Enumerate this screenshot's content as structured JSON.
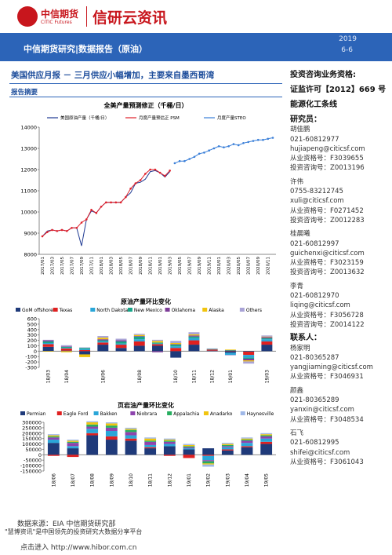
{
  "header": {
    "logo": "中信期货",
    "logo_en": "CITIC Futures",
    "brand": "信研云资讯",
    "section": "中信期货研究|数据报告（原油）",
    "year": "2019",
    "date": "6-6"
  },
  "report": {
    "title": "美国供应月报 － 三月供应小幅增加，主要来自墨西哥湾",
    "tag": "报告摘要"
  },
  "chart_data": [
    {
      "type": "line",
      "title": "全美产量预测修正（千桶/日）",
      "categories": [
        "2017/01",
        null,
        "2017/03",
        null,
        "2017/05",
        null,
        "2017/07",
        null,
        "2017/09",
        null,
        "2017/11",
        null,
        "2018/01",
        null,
        "2018/03",
        null,
        "2018/05",
        null,
        "2018/07",
        null,
        "2018/09",
        null,
        "2018/11",
        null,
        "2019/01",
        null,
        "2019/03",
        null,
        "2019/05",
        null,
        "2019/07",
        null,
        "2019/09",
        null,
        "2019/11",
        null,
        "2020/01",
        null,
        "2020/03",
        null,
        "2020/05",
        null,
        "2020/07",
        null,
        "2020/09",
        null,
        "2020/11",
        null
      ],
      "series": [
        {
          "name": "美国原油产量（千桶/日）",
          "color": "#1f3a93",
          "markers": false,
          "values": [
            8850,
            9100,
            9150,
            9100,
            9150,
            9100,
            9250,
            9250,
            8400,
            9650,
            10050,
            9950,
            10250,
            10450,
            10450,
            10450,
            10450,
            10700,
            10900,
            11350,
            11400,
            11550,
            11900,
            11950,
            11850,
            11650,
            11900,
            null,
            null,
            null,
            null,
            null,
            null,
            null,
            null,
            null,
            null,
            null,
            null,
            null,
            null,
            null,
            null,
            null,
            null,
            null,
            null,
            null
          ]
        },
        {
          "name": "月度产量预估正 PSM",
          "color": "#e0202a",
          "markers": true,
          "values": [
            8850,
            9050,
            9150,
            9100,
            9150,
            9100,
            9250,
            9250,
            9500,
            9650,
            10100,
            9950,
            10250,
            10450,
            10450,
            10450,
            10450,
            10700,
            11100,
            11350,
            11500,
            11800,
            12000,
            12000,
            11850,
            11700,
            11950,
            null,
            null,
            null,
            null,
            null,
            null,
            null,
            null,
            null,
            null,
            null,
            null,
            null,
            null,
            null,
            null,
            null,
            null,
            null,
            null,
            null
          ]
        },
        {
          "name": "月度产量STEO",
          "color": "#3a7fd8",
          "markers": true,
          "values": [
            null,
            null,
            null,
            null,
            null,
            null,
            null,
            null,
            null,
            null,
            null,
            null,
            null,
            null,
            null,
            null,
            null,
            null,
            null,
            null,
            null,
            null,
            null,
            null,
            null,
            null,
            null,
            12300,
            12400,
            12400,
            12500,
            12600,
            12750,
            12800,
            12900,
            13000,
            13100,
            13050,
            13100,
            13200,
            13150,
            13250,
            13300,
            13350,
            13400,
            13400,
            13450,
            13500
          ]
        }
      ],
      "ylim": [
        8000,
        14000
      ],
      "yticks": [
        8000,
        9000,
        10000,
        11000,
        12000,
        13000,
        14000
      ],
      "grid": false
    },
    {
      "type": "bar",
      "stacked": true,
      "title": "原油产量环比变化",
      "categories": [
        "18/03",
        "18/04",
        null,
        "18/06",
        null,
        "18/08",
        null,
        "18/10",
        "18/11",
        "18/12",
        "19/01",
        null,
        "19/03"
      ],
      "series": [
        {
          "name": "GoM offshore",
          "color": "#1f3a7a",
          "values": [
            80,
            10,
            -60,
            120,
            60,
            100,
            100,
            -120,
            120,
            10,
            -30,
            -10,
            120
          ]
        },
        {
          "name": "Texas",
          "color": "#e02020",
          "values": [
            50,
            40,
            20,
            40,
            60,
            80,
            30,
            60,
            80,
            20,
            10,
            -60,
            60
          ]
        },
        {
          "name": "North Dakota",
          "color": "#2aa6d8",
          "values": [
            20,
            10,
            20,
            20,
            20,
            40,
            10,
            30,
            40,
            0,
            -40,
            -50,
            40
          ]
        },
        {
          "name": "New Mexico",
          "color": "#17a589",
          "values": [
            30,
            20,
            20,
            20,
            40,
            50,
            20,
            30,
            30,
            10,
            10,
            -20,
            20
          ]
        },
        {
          "name": "Oklahoma",
          "color": "#7d3c98",
          "values": [
            20,
            10,
            0,
            20,
            20,
            10,
            -20,
            10,
            20,
            0,
            0,
            -30,
            20
          ]
        },
        {
          "name": "Alaska",
          "color": "#f1c40f",
          "values": [
            -10,
            -20,
            -50,
            30,
            0,
            20,
            30,
            20,
            20,
            0,
            10,
            -20,
            10
          ]
        },
        {
          "name": "Others",
          "color": "#a9a3d6",
          "values": [
            10,
            20,
            10,
            30,
            30,
            20,
            20,
            40,
            40,
            10,
            -10,
            -40,
            20
          ]
        }
      ],
      "ylim": [
        -300,
        600
      ],
      "yticks": [
        -300,
        -200,
        -100,
        0,
        100,
        200,
        300,
        400,
        500,
        600
      ]
    },
    {
      "type": "bar",
      "stacked": true,
      "title": "页岩油产量环比变化",
      "categories": [
        "18/06",
        "18/07",
        "18/08",
        "18/09",
        "18/10",
        "18/11",
        "18/12",
        "19/01",
        "19/02",
        "19/03",
        "19/04",
        "19/05"
      ],
      "series": [
        {
          "name": "Permian",
          "color": "#1f3a7a",
          "values": [
            110000,
            60000,
            180000,
            140000,
            130000,
            60000,
            80000,
            50000,
            60000,
            40000,
            70000,
            100000
          ]
        },
        {
          "name": "Eagle Ford",
          "color": "#e02020",
          "values": [
            -10000,
            -20000,
            20000,
            30000,
            20000,
            10000,
            -10000,
            -30000,
            -10000,
            10000,
            10000,
            20000
          ]
        },
        {
          "name": "Bakken",
          "color": "#2aa6d8",
          "values": [
            30000,
            20000,
            40000,
            50000,
            30000,
            20000,
            20000,
            10000,
            -40000,
            20000,
            30000,
            30000
          ]
        },
        {
          "name": "Niobrara",
          "color": "#8e44ad",
          "values": [
            20000,
            30000,
            20000,
            30000,
            30000,
            30000,
            20000,
            10000,
            -10000,
            10000,
            20000,
            20000
          ]
        },
        {
          "name": "Appalachia",
          "color": "#27ae60",
          "values": [
            10000,
            10000,
            20000,
            20000,
            20000,
            10000,
            10000,
            10000,
            -20000,
            10000,
            10000,
            10000
          ]
        },
        {
          "name": "Anadarko",
          "color": "#f1c40f",
          "values": [
            10000,
            10000,
            20000,
            20000,
            10000,
            20000,
            10000,
            10000,
            -10000,
            10000,
            10000,
            10000
          ]
        },
        {
          "name": "Haynesville",
          "color": "#9fb8e8",
          "values": [
            10000,
            10000,
            10000,
            10000,
            10000,
            10000,
            10000,
            10000,
            -20000,
            10000,
            10000,
            10000
          ]
        }
      ],
      "ylim": [
        -150000,
        300000
      ],
      "yticks": [
        -150000,
        -100000,
        -50000,
        0,
        50000,
        100000,
        150000,
        200000,
        250000,
        300000
      ]
    }
  ],
  "source": "数据来源：EIA 中信期货研究部",
  "sidebar": {
    "heading": [
      "投资咨询业务资格:",
      "证监许可【2012】669 号",
      "能源化工条线"
    ],
    "researchers_label": "研究员：",
    "researchers": [
      [
        "胡佳鹏",
        "021-60812977",
        "hujiapeng@citicsf.com",
        "从业资格号：F3039655",
        "投资咨询号：Z0013196"
      ],
      [
        "许伟",
        "0755-83212745",
        "xuli@citicsf.com",
        "从业资格号：F0271452",
        "投资咨询号：Z0012283"
      ],
      [
        "桂晨曦",
        "021-60812997",
        "guichenxi@citicsf.com",
        "从业资格号：F3023159",
        "投资咨询号：Z0013632"
      ],
      [
        "李青",
        "021-60812970",
        "liqing@citicsf.com",
        "从业资格号：F3056728",
        "投资咨询号：Z0014122"
      ]
    ],
    "contacts_label": "联系人：",
    "contacts": [
      [
        "杨家明",
        "021-80365287",
        "yangjiaming@citicsf.com",
        "从业资格号：F3046931"
      ],
      [
        "颜鑫",
        "021-80365289",
        "yanxin@citicsf.com",
        "从业资格号：F3048534"
      ],
      [
        "石飞",
        "021-60812995",
        "shifei@citicsf.com",
        "从业资格号：F3061043"
      ]
    ]
  },
  "footer": {
    "tagline": "\"慧博资讯\"是中国领先的投资研究大数据分享平台",
    "link": "点击进入 http://www.hibor.com.cn"
  }
}
